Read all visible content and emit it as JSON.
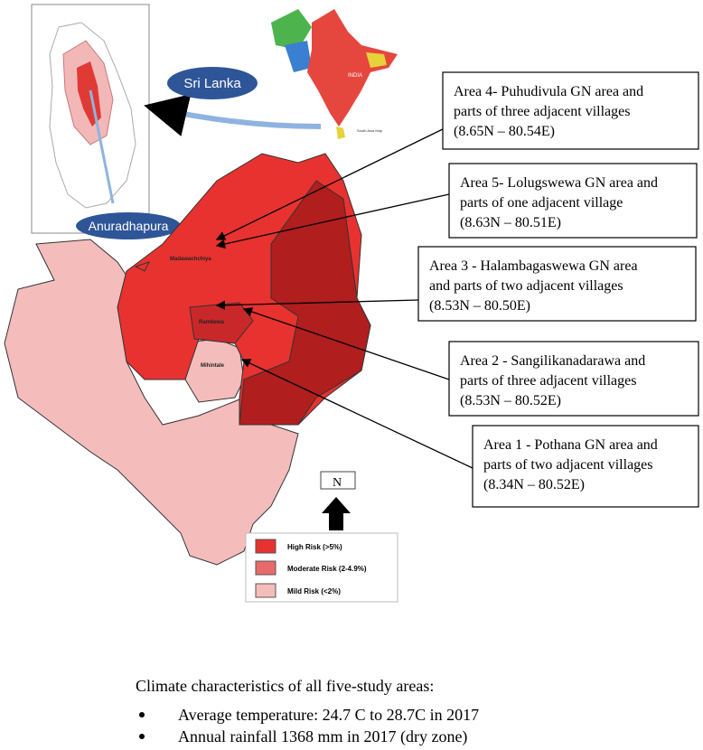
{
  "inset": {
    "sri_lanka": "Sri Lanka",
    "anuradhapura": "Anuradhapura"
  },
  "south_asia": {
    "india": "INDIA",
    "caption": "South Asia Map"
  },
  "place_labels": [
    "Madawachchiya",
    "Rambewa",
    "Mihintale"
  ],
  "north": "N",
  "areas": [
    {
      "lines": [
        "Area 4- Puhudivula GN area and",
        "parts of three adjacent villages",
        "(8.65N – 80.54E)"
      ]
    },
    {
      "lines": [
        "Area 5- Lolugswewa GN area and",
        "parts of one adjacent village",
        "(8.63N – 80.51E)"
      ]
    },
    {
      "lines": [
        "Area 3  - Halambagaswewa GN area",
        "and parts of two adjacent villages",
        "(8.53N – 80.50E)"
      ]
    },
    {
      "lines": [
        "Area 2 - Sangilikanadarawa and",
        "parts of three adjacent villages",
        "(8.53N – 80.52E)"
      ]
    },
    {
      "lines": [
        "Area 1 - Pothana GN area and",
        "parts of two adjacent villages",
        "(8.34N – 80.52E)"
      ]
    }
  ],
  "legend": [
    "High Risk (>5%)",
    "Moderate Risk (2-4.9%)",
    "Mild Risk (<2%)"
  ],
  "climate": {
    "heading": "Climate characteristics of all five-study areas:",
    "bullets": [
      "Average temperature: 24.7 C to 28.7C  in 2017",
      "Annual rainfall 1368 mm  in 2017 (dry zone)"
    ]
  }
}
